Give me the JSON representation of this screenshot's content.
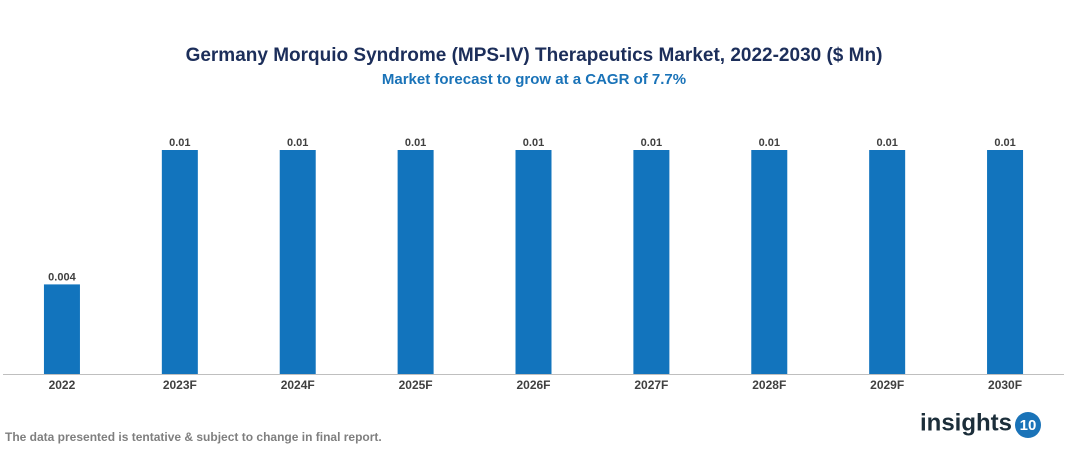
{
  "chart_data": {
    "type": "bar",
    "title": "Germany Morquio Syndrome (MPS-IV) Therapeutics Market, 2022-2030 ($ Mn)",
    "subtitle": "Market forecast to grow at a CAGR of 7.7%",
    "categories": [
      "2022",
      "2023F",
      "2024F",
      "2025F",
      "2026F",
      "2027F",
      "2028F",
      "2029F",
      "2030F"
    ],
    "values": [
      0.004,
      0.01,
      0.01,
      0.01,
      0.01,
      0.01,
      0.01,
      0.01,
      0.01
    ],
    "color": "#1274bd"
  },
  "footnote": "The data presented is tentative & subject to change in final report.",
  "logo": {
    "text": "insights",
    "badge": "10"
  }
}
